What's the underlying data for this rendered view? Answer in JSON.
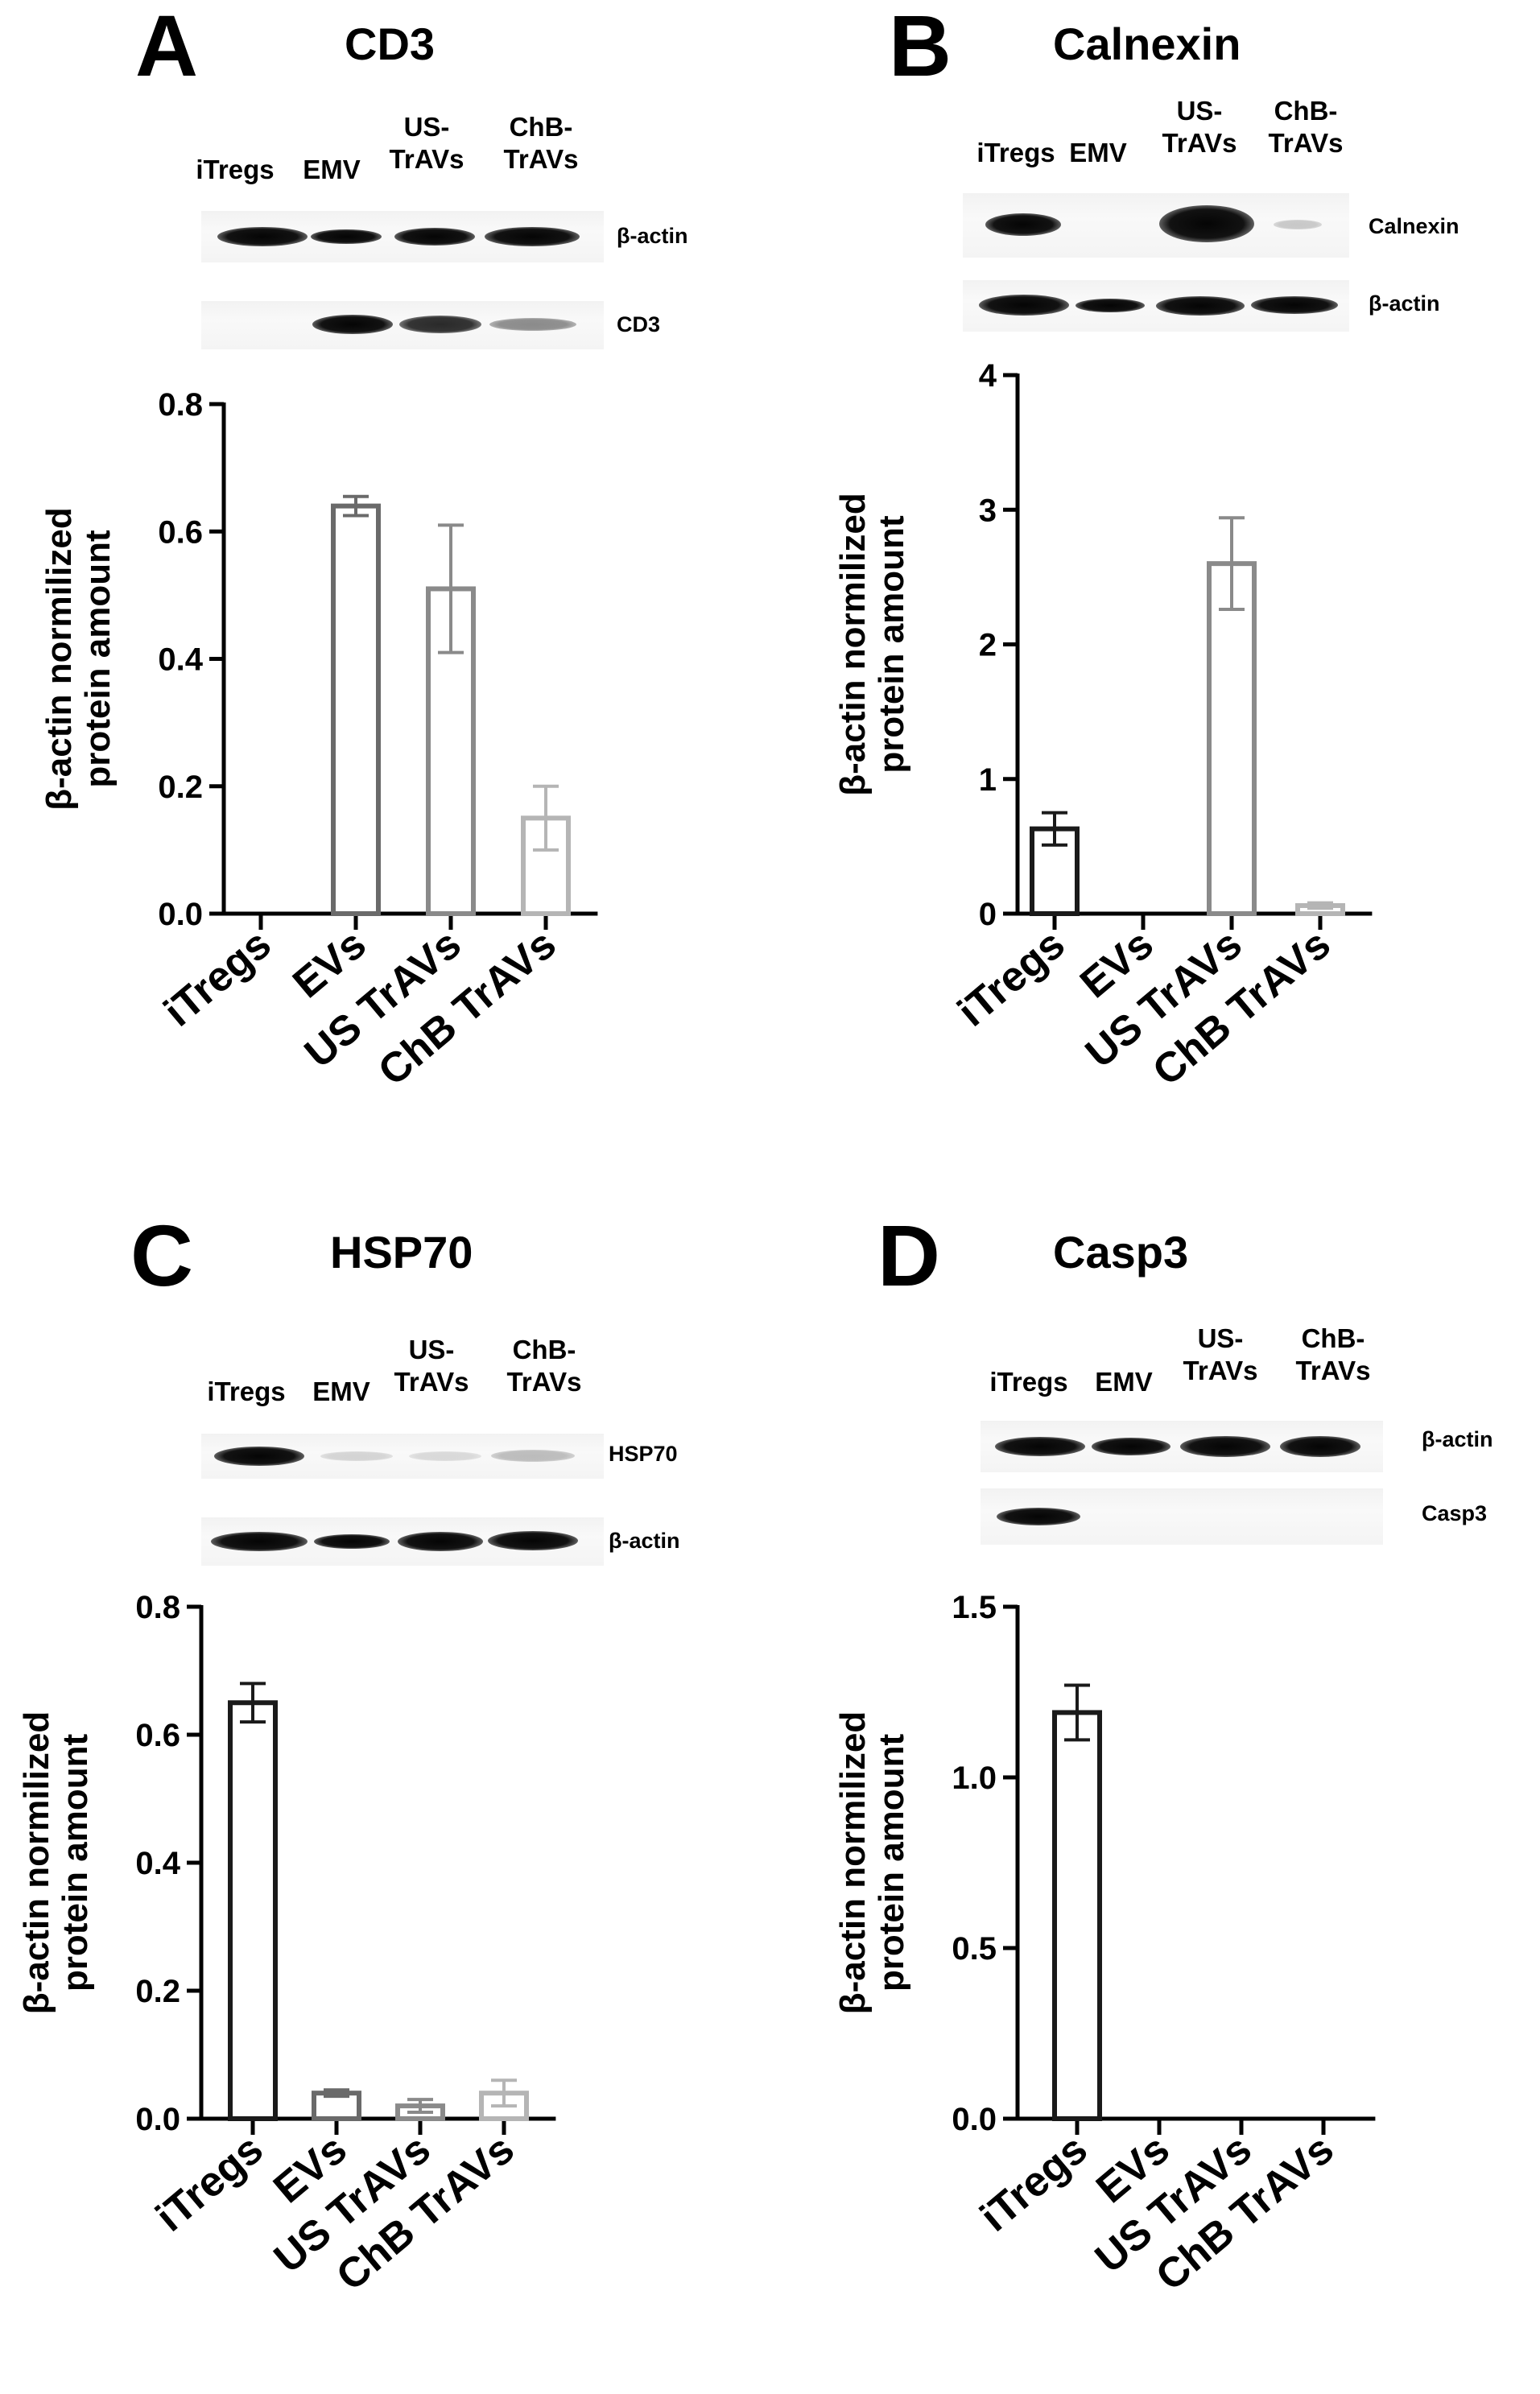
{
  "panels": [
    {
      "letter": "A",
      "title": "CD3",
      "lanes": [
        "iTregs",
        "EMV",
        "US-\nTrAVs",
        "ChB-\nTrAVs"
      ],
      "blot_rows": [
        {
          "label": "β-actin",
          "intensities": [
            0.95,
            0.75,
            0.85,
            0.9
          ]
        },
        {
          "label": "CD3",
          "intensities": [
            0.0,
            0.75,
            0.7,
            0.4
          ]
        }
      ]
    },
    {
      "letter": "B",
      "title": "Calnexin",
      "lanes": [
        "iTregs",
        "EMV",
        "US-\nTrAVs",
        "ChB-\nTrAVs"
      ],
      "blot_rows": [
        {
          "label": "Calnexin",
          "intensities": [
            0.85,
            0.0,
            1.0,
            0.15
          ]
        },
        {
          "label": "β-actin",
          "intensities": [
            0.95,
            0.7,
            0.9,
            0.85
          ]
        }
      ]
    },
    {
      "letter": "C",
      "title": "HSP70",
      "lanes": [
        "iTregs",
        "EMV",
        "US-\nTrAVs",
        "ChB-\nTrAVs"
      ],
      "blot_rows": [
        {
          "label": "HSP70",
          "intensities": [
            0.85,
            0.2,
            0.18,
            0.28
          ]
        },
        {
          "label": "β-actin",
          "intensities": [
            0.95,
            0.75,
            0.9,
            0.88
          ]
        }
      ]
    },
    {
      "letter": "D",
      "title": "Casp3",
      "lanes": [
        "iTregs",
        "EMV",
        "US-\nTrAVs",
        "ChB-\nTrAVs"
      ],
      "blot_rows": [
        {
          "label": "β-actin",
          "intensities": [
            0.95,
            0.85,
            0.95,
            0.9
          ]
        },
        {
          "label": "Casp3",
          "intensities": [
            0.8,
            0.0,
            0.0,
            0.0
          ]
        }
      ]
    }
  ],
  "chart_data": [
    {
      "type": "bar",
      "panel": "A",
      "title": "CD3",
      "categories": [
        "iTregs",
        "EVs",
        "US TrAVs",
        "ChB TrAVs"
      ],
      "values": [
        0,
        0.64,
        0.51,
        0.15
      ],
      "errors": [
        0,
        0.015,
        0.1,
        0.05
      ],
      "ylabel": "β-actin normilized\nprotein amount",
      "ylim": [
        0,
        0.8
      ],
      "yticks": [
        "0.0",
        "0.2",
        "0.4",
        "0.6",
        "0.8"
      ],
      "bar_colors": [
        "#1a1a1a",
        "#6a6a6a",
        "#8a8a8a",
        "#b5b5b5"
      ]
    },
    {
      "type": "bar",
      "panel": "B",
      "title": "Calnexin",
      "categories": [
        "iTregs",
        "EVs",
        "US TrAVs",
        "ChB TrAVs"
      ],
      "values": [
        0.63,
        0,
        2.6,
        0.06
      ],
      "errors": [
        0.12,
        0,
        0.34,
        0.02
      ],
      "ylabel": "β-actin normilized\nprotein amount",
      "ylim": [
        0,
        4
      ],
      "yticks": [
        "0",
        "1",
        "2",
        "3",
        "4"
      ],
      "bar_colors": [
        "#1a1a1a",
        "#6a6a6a",
        "#8a8a8a",
        "#b5b5b5"
      ]
    },
    {
      "type": "bar",
      "panel": "C",
      "title": "HSP70",
      "categories": [
        "iTregs",
        "EVs",
        "US TrAVs",
        "ChB TrAVs"
      ],
      "values": [
        0.65,
        0.04,
        0.02,
        0.04
      ],
      "errors": [
        0.03,
        0.005,
        0.01,
        0.02
      ],
      "ylabel": "β-actin normilized\nprotein amount",
      "ylim": [
        0,
        0.8
      ],
      "yticks": [
        "0.0",
        "0.2",
        "0.4",
        "0.6",
        "0.8"
      ],
      "bar_colors": [
        "#1a1a1a",
        "#6a6a6a",
        "#8a8a8a",
        "#b5b5b5"
      ]
    },
    {
      "type": "bar",
      "panel": "D",
      "title": "Casp3",
      "categories": [
        "iTregs",
        "EVs",
        "US TrAVs",
        "ChB TrAVs"
      ],
      "values": [
        1.19,
        0,
        0,
        0
      ],
      "errors": [
        0.08,
        0,
        0,
        0
      ],
      "ylabel": "β-actin normilized\nprotein amount",
      "ylim": [
        0,
        1.5
      ],
      "yticks": [
        "0.0",
        "0.5",
        "1.0",
        "1.5"
      ],
      "bar_colors": [
        "#1a1a1a",
        "#6a6a6a",
        "#8a8a8a",
        "#b5b5b5"
      ]
    }
  ]
}
